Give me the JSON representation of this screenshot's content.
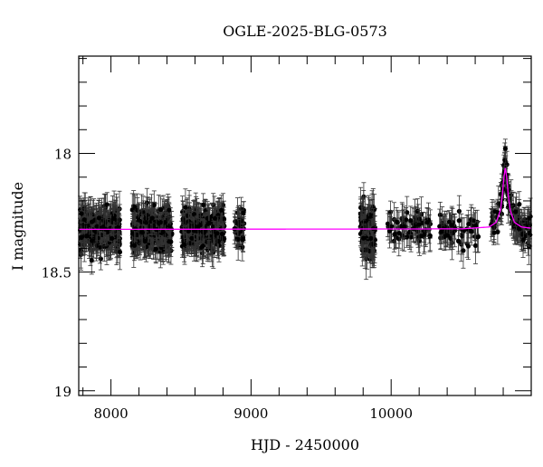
{
  "chart_data": {
    "type": "scatter",
    "title": "OGLE-2025-BLG-0573",
    "xlabel": "HJD - 2450000",
    "ylabel": "I magnitude",
    "xlim": [
      7770,
      11000
    ],
    "ylim": [
      19.02,
      17.59
    ],
    "y_inverted": true,
    "x_ticks": [
      8000,
      9000,
      10000
    ],
    "x_tick_labels": [
      "8000",
      "9000",
      "10000"
    ],
    "x_minor_step": 200,
    "y_ticks": [
      18,
      18.5,
      19
    ],
    "y_tick_labels": [
      "18",
      "18.5",
      "19"
    ],
    "y_minor_step": 0.1,
    "grid": false,
    "colors": {
      "points": "#000000",
      "errorbars": "#333333",
      "model": "#ff00ff"
    },
    "observing_seasons": [
      {
        "start": 7780,
        "end": 8065,
        "mean_mag": 18.32,
        "scatter": 0.07,
        "error": 0.06,
        "count": 300
      },
      {
        "start": 8150,
        "end": 8435,
        "mean_mag": 18.32,
        "scatter": 0.07,
        "error": 0.06,
        "count": 300
      },
      {
        "start": 8505,
        "end": 8810,
        "mean_mag": 18.32,
        "scatter": 0.07,
        "error": 0.06,
        "count": 300
      },
      {
        "start": 8880,
        "end": 8950,
        "mean_mag": 18.32,
        "scatter": 0.06,
        "error": 0.05,
        "count": 40
      },
      {
        "start": 9780,
        "end": 9885,
        "mean_mag": 18.33,
        "scatter": 0.08,
        "error": 0.07,
        "count": 120
      },
      {
        "start": 9975,
        "end": 10280,
        "mean_mag": 18.31,
        "scatter": 0.05,
        "error": 0.06,
        "count": 70
      },
      {
        "start": 10345,
        "end": 10630,
        "mean_mag": 18.32,
        "scatter": 0.05,
        "error": 0.06,
        "count": 60
      },
      {
        "start": 10710,
        "end": 10995,
        "mean_mag": 18.32,
        "scatter": 0.05,
        "error": 0.06,
        "count": 110
      }
    ],
    "peak_points": [
      [
        10815,
        17.98
      ],
      [
        10812,
        18.03
      ],
      [
        10818,
        18.05
      ],
      [
        10808,
        18.08
      ],
      [
        10822,
        18.09
      ],
      [
        10800,
        18.15
      ],
      [
        10830,
        18.16
      ],
      [
        10790,
        18.22
      ],
      [
        10840,
        18.22
      ]
    ],
    "model": {
      "name": "",
      "x": [
        7770,
        10500,
        10700,
        10750,
        10780,
        10795,
        10805,
        10815,
        10825,
        10835,
        10850,
        10880,
        10930,
        11000
      ],
      "y": [
        18.32,
        18.318,
        18.31,
        18.29,
        18.24,
        18.17,
        18.1,
        18.06,
        18.1,
        18.17,
        18.24,
        18.29,
        18.31,
        18.315
      ]
    }
  }
}
